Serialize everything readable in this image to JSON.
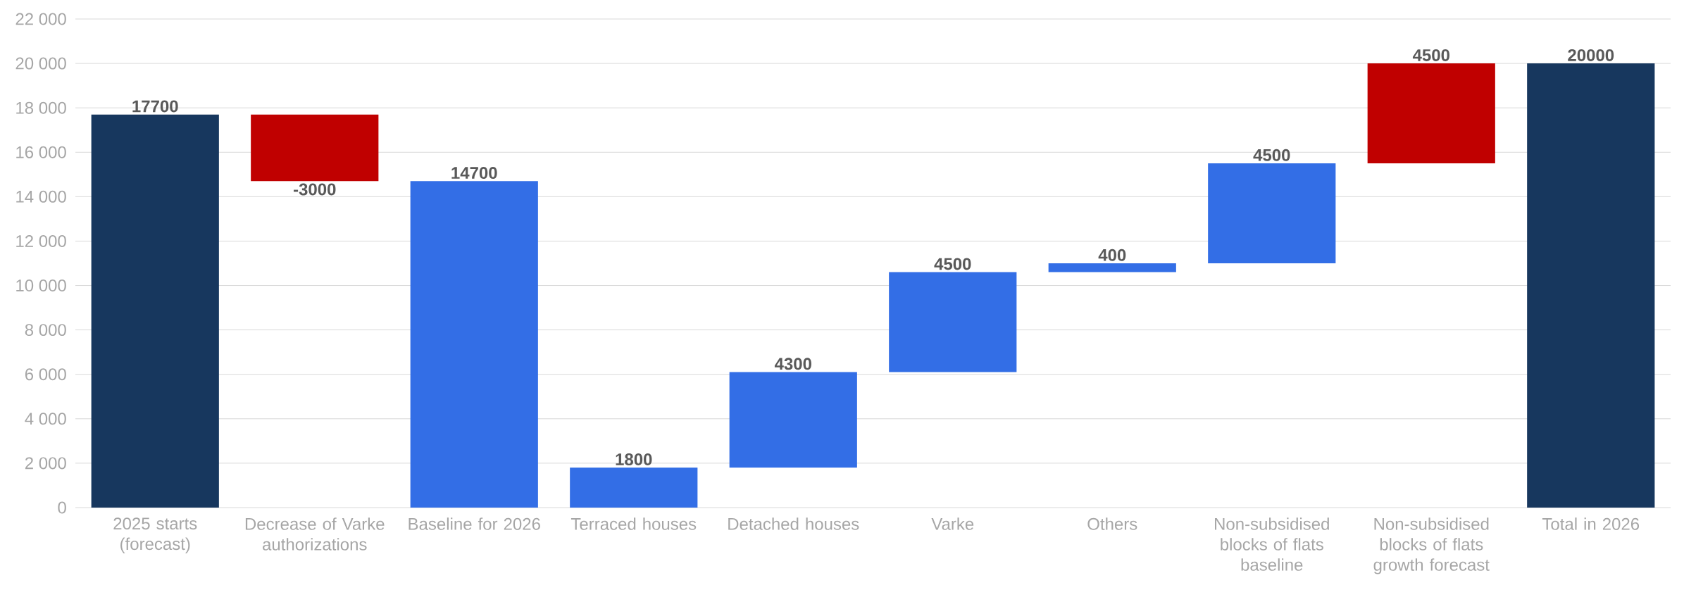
{
  "chart_data": {
    "type": "bar",
    "categories": [
      "2025 starts (forecast)",
      "Decrease of Varke authorizations",
      "Baseline for 2026",
      "Terraced houses",
      "Detached houses",
      "Varke",
      "Others",
      "Non-subsidised blocks of flats baseline",
      "Non-subsidised blocks of flats growth forecast",
      "Total in 2026"
    ],
    "values": [
      17700,
      -3000,
      14700,
      1800,
      4300,
      4500,
      400,
      4500,
      4500,
      20000
    ],
    "base": [
      0,
      17700,
      0,
      0,
      1800,
      6100,
      10600,
      11000,
      15500,
      0
    ],
    "colors": [
      "#17375e",
      "#c00000",
      "#336ee6",
      "#336ee6",
      "#336ee6",
      "#336ee6",
      "#336ee6",
      "#336ee6",
      "#c00000",
      "#17375e"
    ],
    "value_labels": [
      "17700",
      "-3000",
      "14700",
      "1800",
      "4300",
      "4500",
      "400",
      "4500",
      "4500",
      "20000"
    ],
    "ylim": [
      0,
      22000
    ],
    "yticks": [
      0,
      {
        "value": 2000,
        "label": "2 000"
      },
      {
        "value": 4000,
        "label": "4 000"
      },
      {
        "value": 6000,
        "label": "6 000"
      },
      {
        "value": 8000,
        "label": "8 000"
      },
      {
        "value": 10000,
        "label": "10 000"
      },
      {
        "value": 12000,
        "label": "12 000"
      },
      {
        "value": 14000,
        "label": "14 000"
      },
      {
        "value": 16000,
        "label": "16 000"
      },
      {
        "value": 18000,
        "label": "18 000"
      },
      {
        "value": 20000,
        "label": "20 000"
      },
      {
        "value": 22000,
        "label": "22 000"
      }
    ],
    "grid": "y"
  }
}
